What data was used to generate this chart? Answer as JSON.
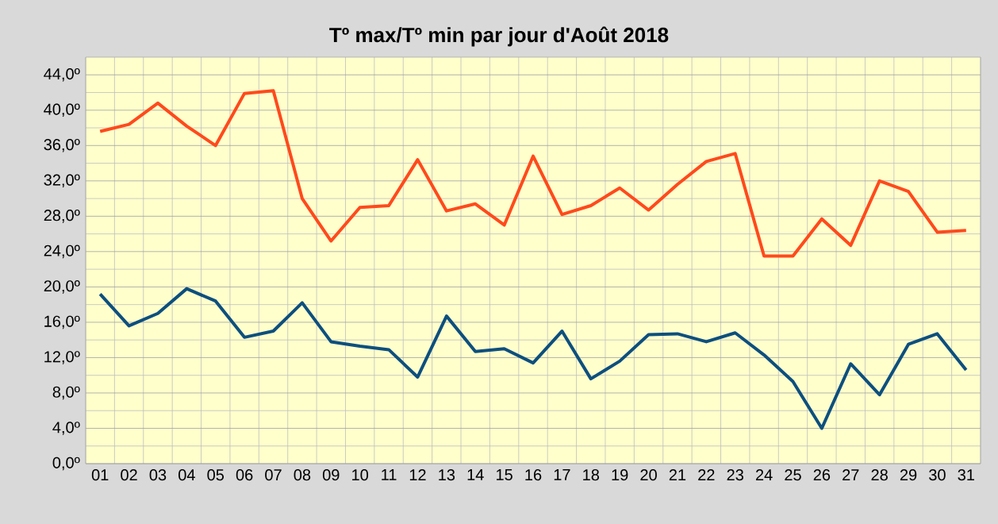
{
  "chart_data": {
    "type": "line",
    "title": "Tº max/Tº min par jour d'Août 2018",
    "categories": [
      "01",
      "02",
      "03",
      "04",
      "05",
      "06",
      "07",
      "08",
      "09",
      "10",
      "11",
      "12",
      "13",
      "14",
      "15",
      "16",
      "17",
      "18",
      "19",
      "20",
      "21",
      "22",
      "23",
      "24",
      "25",
      "26",
      "27",
      "28",
      "29",
      "30",
      "31"
    ],
    "series": [
      {
        "color": "#ff4a1c",
        "values": [
          37.6,
          38.4,
          40.8,
          38.2,
          36,
          41.9,
          42.2,
          30,
          25.2,
          29,
          29.2,
          34.4,
          28.6,
          29.4,
          27,
          34.8,
          28.2,
          29.2,
          31.2,
          28.7,
          31.6,
          34.2,
          35.1,
          23.5,
          23.5,
          27.7,
          24.7,
          32,
          30.8,
          26.2,
          26.4
        ]
      },
      {
        "color": "#0d4f7e",
        "values": [
          19.2,
          15.6,
          17,
          19.8,
          18.4,
          14.3,
          15,
          18.2,
          13.8,
          13.3,
          12.9,
          9.8,
          16.7,
          12.7,
          13,
          11.4,
          15,
          9.6,
          11.6,
          14.6,
          14.7,
          13.8,
          14.8,
          12.3,
          9.3,
          4,
          11.3,
          7.8,
          13.5,
          14.7,
          10.6
        ]
      }
    ],
    "ylim": [
      0,
      46
    ],
    "yticks": [
      {
        "value": 0,
        "label": "0,0º"
      },
      {
        "value": 4,
        "label": "4,0º"
      },
      {
        "value": 8,
        "label": "8,0º"
      },
      {
        "value": 12,
        "label": "12,0º"
      },
      {
        "value": 16,
        "label": "16,0º"
      },
      {
        "value": 20,
        "label": "20,0º"
      },
      {
        "value": 24,
        "label": "24,0º"
      },
      {
        "value": 28,
        "label": "28,0º"
      },
      {
        "value": 32,
        "label": "32,0º"
      },
      {
        "value": 36,
        "label": "36,0º"
      },
      {
        "value": 40,
        "label": "40,0º"
      },
      {
        "value": 44,
        "label": "44,0º"
      }
    ],
    "grid": true,
    "marker": "none",
    "line_style": "solid"
  }
}
